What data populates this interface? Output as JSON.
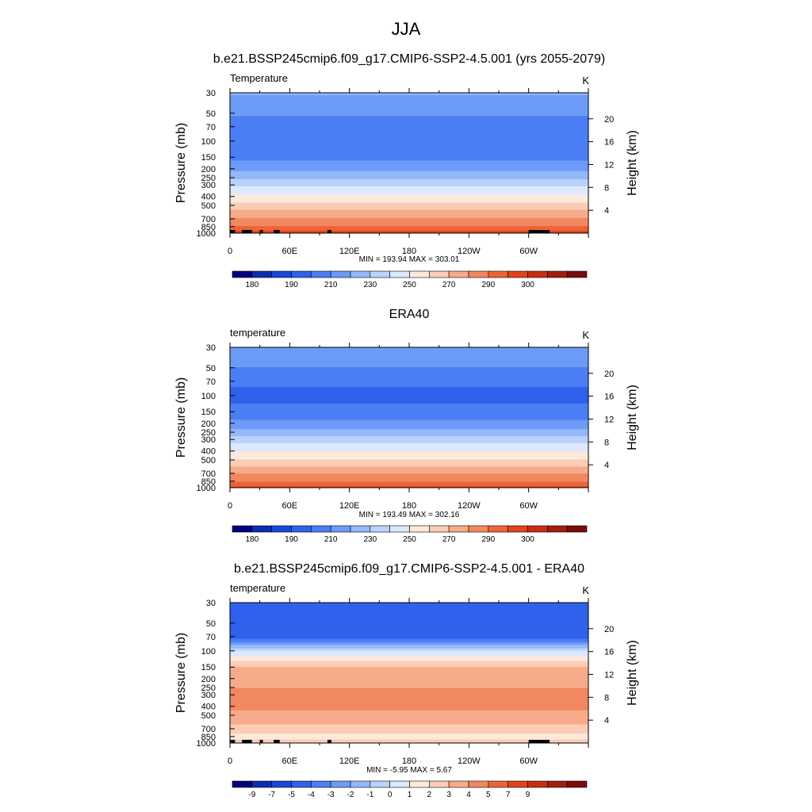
{
  "figure": {
    "title": "JJA"
  },
  "colorbar_palette": [
    "#00007f",
    "#0a2eb3",
    "#1a48d6",
    "#2f62ec",
    "#4b7ef5",
    "#6d9bf8",
    "#94b8fb",
    "#bad3fc",
    "#dce8fd",
    "#fde9dc",
    "#fbcdb5",
    "#f7ab8a",
    "#f28860",
    "#ec6436",
    "#e34218",
    "#c92d12",
    "#a31d0e",
    "#7a0d0b"
  ],
  "chart_data": [
    {
      "type": "heatmap",
      "title": "b.e21.BSSP245cmip6.f09_g17.CMIP6-SSP2-4.5.001 (yrs 2055-2079)",
      "variable_label": "Temperature",
      "units": "K",
      "xlabel": "",
      "ylabel": "Pressure (mb)",
      "ylabel_right": "Height (km)",
      "x_ticks": [
        "0",
        "60E",
        "120E",
        "180",
        "120W",
        "60W"
      ],
      "x_tick_values": [
        0,
        60,
        120,
        180,
        240,
        300
      ],
      "xlim": [
        0,
        360
      ],
      "y_ticks": [
        "30",
        "50",
        "70",
        "100",
        "150",
        "200",
        "250",
        "300",
        "400",
        "500",
        "700",
        "850",
        "1000"
      ],
      "y_tick_values": [
        30,
        50,
        70,
        100,
        150,
        200,
        250,
        300,
        400,
        500,
        700,
        850,
        1000
      ],
      "ylim": [
        1000,
        30
      ],
      "height_ticks": [
        "20",
        "16",
        "12",
        "8",
        "4"
      ],
      "height_tick_values": [
        20,
        16,
        12,
        8,
        4
      ],
      "stats": "MIN = 193.94  MAX = 303.01",
      "colorbar_labels": [
        "180",
        "190",
        "210",
        "230",
        "250",
        "270",
        "290",
        "300"
      ],
      "colorbar_label_positions": [
        1,
        3,
        5,
        7,
        9,
        11,
        13,
        15
      ],
      "profile": [
        {
          "p": 30,
          "v": 221
        },
        {
          "p": 50,
          "v": 212
        },
        {
          "p": 70,
          "v": 203
        },
        {
          "p": 100,
          "v": 200
        },
        {
          "p": 150,
          "v": 207
        },
        {
          "p": 200,
          "v": 217
        },
        {
          "p": 250,
          "v": 228
        },
        {
          "p": 300,
          "v": 239
        },
        {
          "p": 400,
          "v": 253
        },
        {
          "p": 500,
          "v": 264
        },
        {
          "p": 700,
          "v": 281
        },
        {
          "p": 850,
          "v": 291
        },
        {
          "p": 1000,
          "v": 298
        }
      ],
      "topography": [
        [
          0,
          5
        ],
        [
          12,
          22
        ],
        [
          30,
          33
        ],
        [
          44,
          50
        ],
        [
          98,
          102
        ],
        [
          300,
          321
        ]
      ]
    },
    {
      "type": "heatmap",
      "title": "ERA40",
      "variable_label": "temperature",
      "units": "K",
      "xlabel": "",
      "ylabel": "Pressure (mb)",
      "ylabel_right": "Height (km)",
      "x_ticks": [
        "0",
        "60E",
        "120E",
        "180",
        "120W",
        "60W"
      ],
      "x_tick_values": [
        0,
        60,
        120,
        180,
        240,
        300
      ],
      "xlim": [
        0,
        360
      ],
      "y_ticks": [
        "30",
        "50",
        "70",
        "100",
        "150",
        "200",
        "250",
        "300",
        "400",
        "500",
        "700",
        "850",
        "1000"
      ],
      "y_tick_values": [
        30,
        50,
        70,
        100,
        150,
        200,
        250,
        300,
        400,
        500,
        700,
        850,
        1000
      ],
      "ylim": [
        1000,
        30
      ],
      "height_ticks": [
        "20",
        "16",
        "12",
        "8",
        "4"
      ],
      "height_tick_values": [
        20,
        16,
        12,
        8,
        4
      ],
      "stats": "MIN = 193.49  MAX = 302.16",
      "colorbar_labels": [
        "180",
        "190",
        "210",
        "230",
        "250",
        "270",
        "290",
        "300"
      ],
      "colorbar_label_positions": [
        1,
        3,
        5,
        7,
        9,
        11,
        13,
        15
      ],
      "profile": [
        {
          "p": 30,
          "v": 218
        },
        {
          "p": 50,
          "v": 210
        },
        {
          "p": 70,
          "v": 202
        },
        {
          "p": 100,
          "v": 197
        },
        {
          "p": 150,
          "v": 203
        },
        {
          "p": 200,
          "v": 213
        },
        {
          "p": 250,
          "v": 224
        },
        {
          "p": 300,
          "v": 235
        },
        {
          "p": 400,
          "v": 250
        },
        {
          "p": 500,
          "v": 261
        },
        {
          "p": 700,
          "v": 279
        },
        {
          "p": 850,
          "v": 289
        },
        {
          "p": 1000,
          "v": 297
        }
      ],
      "topography": []
    },
    {
      "type": "heatmap",
      "title": "b.e21.BSSP245cmip6.f09_g17.CMIP6-SSP2-4.5.001 - ERA40",
      "variable_label": "temperature",
      "units": "K",
      "xlabel": "",
      "ylabel": "Pressure (mb)",
      "ylabel_right": "Height (km)",
      "x_ticks": [
        "0",
        "60E",
        "120E",
        "180",
        "120W",
        "60W"
      ],
      "x_tick_values": [
        0,
        60,
        120,
        180,
        240,
        300
      ],
      "xlim": [
        0,
        360
      ],
      "y_ticks": [
        "30",
        "50",
        "70",
        "100",
        "150",
        "200",
        "250",
        "300",
        "400",
        "500",
        "700",
        "850",
        "1000"
      ],
      "y_tick_values": [
        30,
        50,
        70,
        100,
        150,
        200,
        250,
        300,
        400,
        500,
        700,
        850,
        1000
      ],
      "ylim": [
        1000,
        30
      ],
      "height_ticks": [
        "20",
        "16",
        "12",
        "8",
        "4"
      ],
      "height_tick_values": [
        20,
        16,
        12,
        8,
        4
      ],
      "stats": "MIN =  -5.95  MAX =   5.67",
      "colorbar_labels": [
        "-9",
        "-7",
        "-5",
        "-4",
        "-3",
        "-2",
        "-1",
        "0",
        "1",
        "2",
        "3",
        "4",
        "5",
        "7",
        "9"
      ],
      "colorbar_label_positions": [
        1,
        2,
        3,
        4,
        5,
        6,
        7,
        8,
        9,
        10,
        11,
        12,
        13,
        14,
        15
      ],
      "profile": [
        {
          "p": 30,
          "v": -5
        },
        {
          "p": 50,
          "v": -5
        },
        {
          "p": 70,
          "v": -5
        },
        {
          "p": 100,
          "v": 0
        },
        {
          "p": 150,
          "v": 3
        },
        {
          "p": 200,
          "v": 3.6
        },
        {
          "p": 250,
          "v": 4
        },
        {
          "p": 300,
          "v": 4.5
        },
        {
          "p": 400,
          "v": 4.4
        },
        {
          "p": 500,
          "v": 3.6
        },
        {
          "p": 700,
          "v": 2.7
        },
        {
          "p": 850,
          "v": 1.5
        },
        {
          "p": 1000,
          "v": 2.5
        }
      ],
      "topography": [
        [
          0,
          5
        ],
        [
          12,
          22
        ],
        [
          30,
          33
        ],
        [
          44,
          50
        ],
        [
          98,
          102
        ],
        [
          300,
          321
        ]
      ]
    }
  ]
}
